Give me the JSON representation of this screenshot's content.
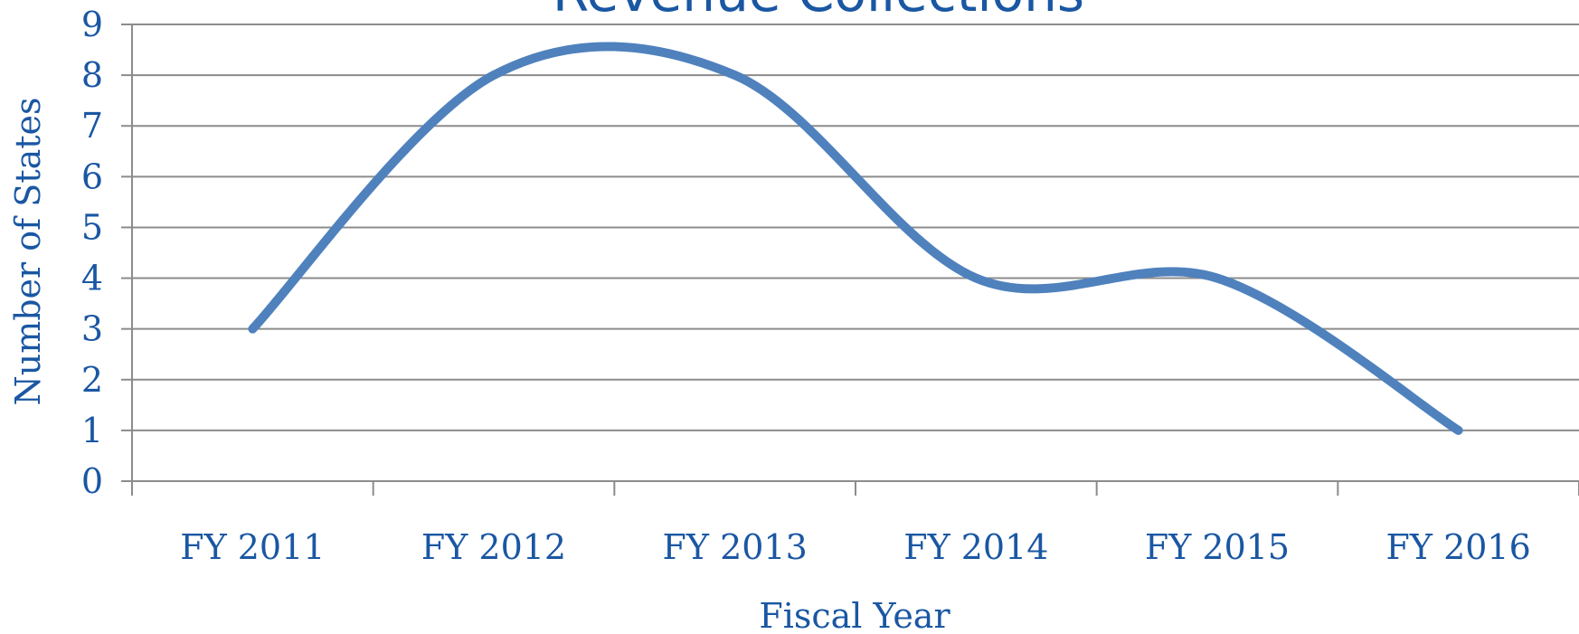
{
  "chart_data": {
    "type": "line",
    "title": "Revenue Collections",
    "xlabel": "Fiscal Year",
    "ylabel": "Number of States",
    "categories": [
      "FY 2011",
      "FY 2012",
      "FY 2013",
      "FY 2014",
      "FY 2015",
      "FY 2016"
    ],
    "series": [
      {
        "values": [
          3,
          8,
          8,
          4,
          4,
          1
        ],
        "color": "#4f81bd"
      }
    ],
    "ylim": [
      0,
      9
    ],
    "yticks": [
      0,
      1,
      2,
      3,
      4,
      5,
      6,
      7,
      8,
      9
    ],
    "grid": true,
    "smooth": true,
    "colors": {
      "text": "#1a57a3",
      "grid": "#8c8c8c",
      "line": "#4f81bd"
    }
  }
}
